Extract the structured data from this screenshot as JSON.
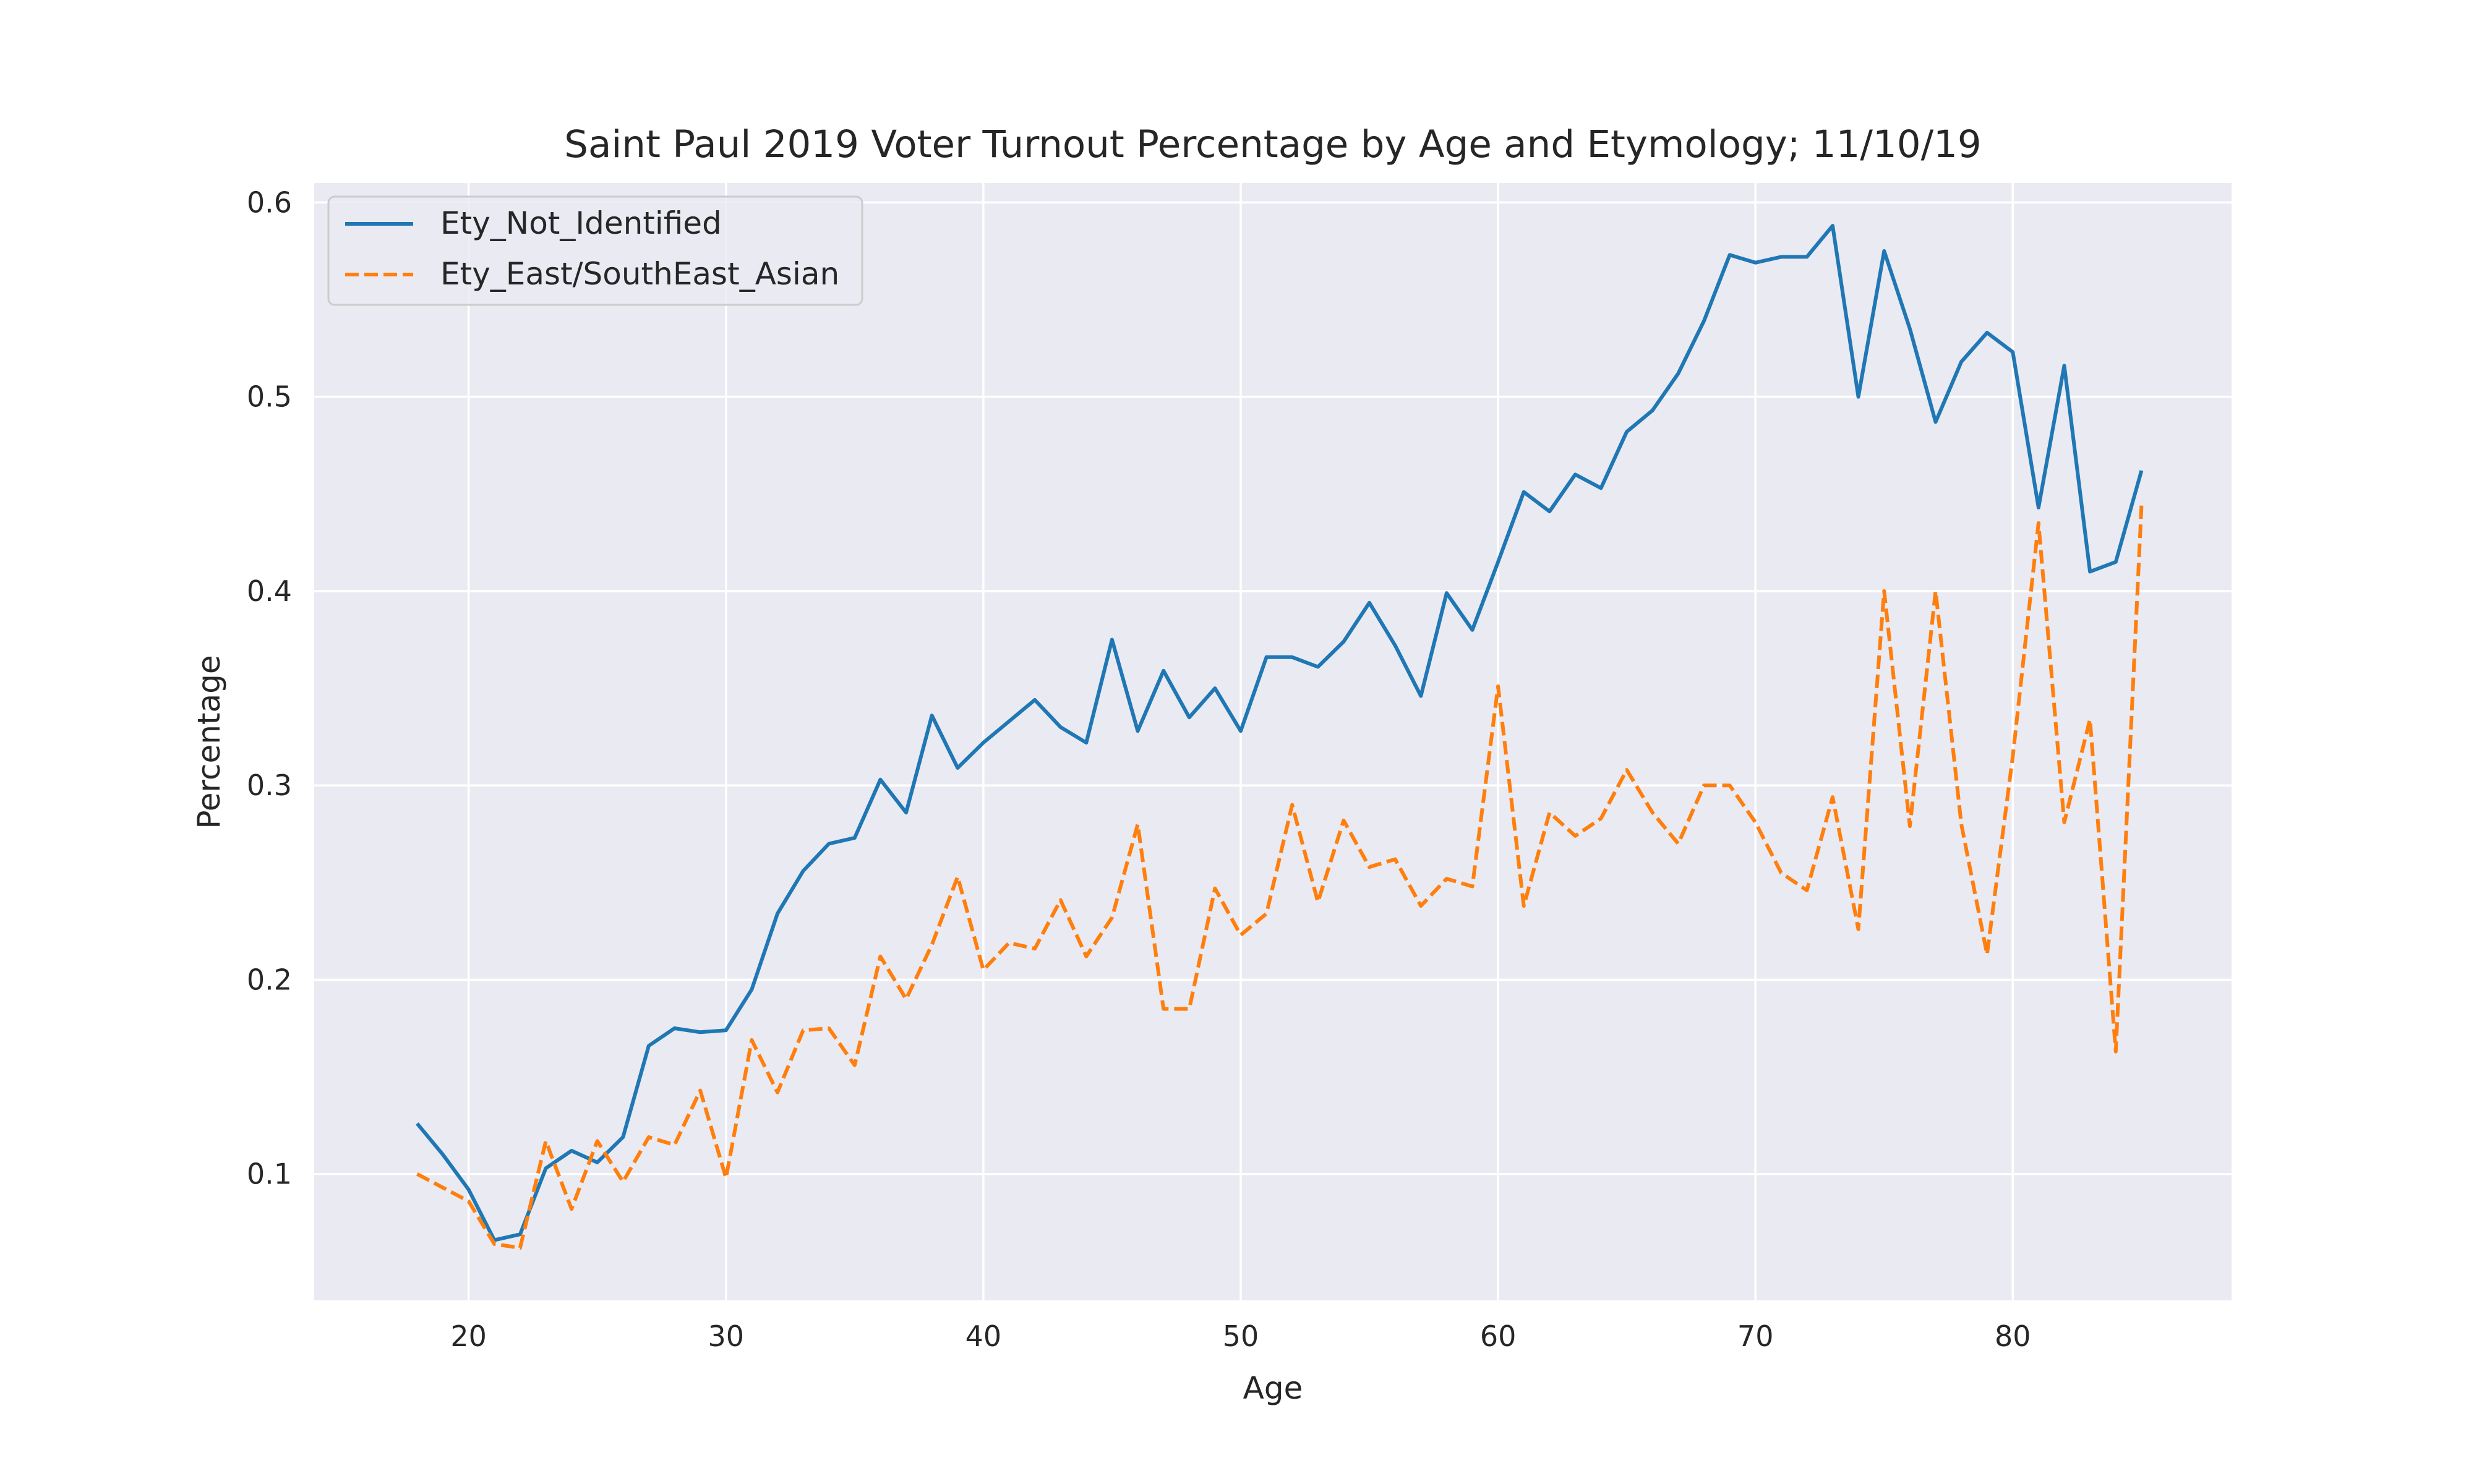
{
  "chart_data": {
    "type": "line",
    "title": "Saint Paul 2019 Voter Turnout Percentage by Age and Etymology; 11/10/19",
    "xlabel": "Age",
    "ylabel": "Percentage",
    "xlim": [
      14,
      88.5
    ],
    "ylim": [
      0.035,
      0.61
    ],
    "xticks": [
      20,
      30,
      40,
      50,
      60,
      70,
      80
    ],
    "yticks": [
      0.1,
      0.2,
      0.3,
      0.4,
      0.5,
      0.6
    ],
    "grid": true,
    "legend_position": "top-left",
    "x": [
      18,
      19,
      20,
      21,
      22,
      23,
      24,
      25,
      26,
      27,
      28,
      29,
      30,
      31,
      32,
      33,
      34,
      35,
      36,
      37,
      38,
      39,
      40,
      41,
      42,
      43,
      44,
      45,
      46,
      47,
      48,
      49,
      50,
      51,
      52,
      53,
      54,
      55,
      56,
      57,
      58,
      59,
      60,
      61,
      62,
      63,
      64,
      65,
      66,
      67,
      68,
      69,
      70,
      71,
      72,
      73,
      74,
      75,
      76,
      77,
      78,
      79,
      80,
      81,
      82,
      83,
      84,
      85
    ],
    "series": [
      {
        "name": "Ety_Not_Identified",
        "color": "#1f77b4",
        "style": "solid",
        "values": [
          0.126,
          0.11,
          0.092,
          0.066,
          0.069,
          0.103,
          0.112,
          0.106,
          0.119,
          0.166,
          0.175,
          0.173,
          0.174,
          0.195,
          0.234,
          0.256,
          0.27,
          0.273,
          0.303,
          0.286,
          0.336,
          0.309,
          0.322,
          0.333,
          0.344,
          0.33,
          0.322,
          0.375,
          0.328,
          0.359,
          0.335,
          0.35,
          0.328,
          0.366,
          0.366,
          0.361,
          0.374,
          0.394,
          0.372,
          0.346,
          0.399,
          0.38,
          0.415,
          0.451,
          0.441,
          0.46,
          0.453,
          0.482,
          0.493,
          0.512,
          0.539,
          0.573,
          0.569,
          0.572,
          0.572,
          0.588,
          0.5,
          0.575,
          0.535,
          0.487,
          0.518,
          0.533,
          0.523,
          0.443,
          0.516,
          0.41,
          0.415,
          0.462
        ]
      },
      {
        "name": "Ety_East/SouthEast_Asian",
        "color": "#ff7f0e",
        "style": "dashed",
        "values": [
          0.1,
          0.093,
          0.086,
          0.064,
          0.062,
          0.117,
          0.082,
          0.117,
          0.096,
          0.119,
          0.115,
          0.143,
          0.098,
          0.169,
          0.142,
          0.174,
          0.175,
          0.156,
          0.212,
          0.19,
          0.218,
          0.253,
          0.205,
          0.219,
          0.216,
          0.241,
          0.212,
          0.232,
          0.28,
          0.185,
          0.185,
          0.247,
          0.223,
          0.234,
          0.29,
          0.24,
          0.282,
          0.258,
          0.262,
          0.238,
          0.252,
          0.248,
          0.351,
          0.238,
          0.286,
          0.274,
          0.283,
          0.308,
          0.286,
          0.27,
          0.3,
          0.3,
          0.281,
          0.255,
          0.246,
          0.294,
          0.226,
          0.4,
          0.279,
          0.4,
          0.28,
          0.213,
          0.315,
          0.435,
          0.281,
          0.334,
          0.163,
          0.444
        ]
      }
    ]
  }
}
